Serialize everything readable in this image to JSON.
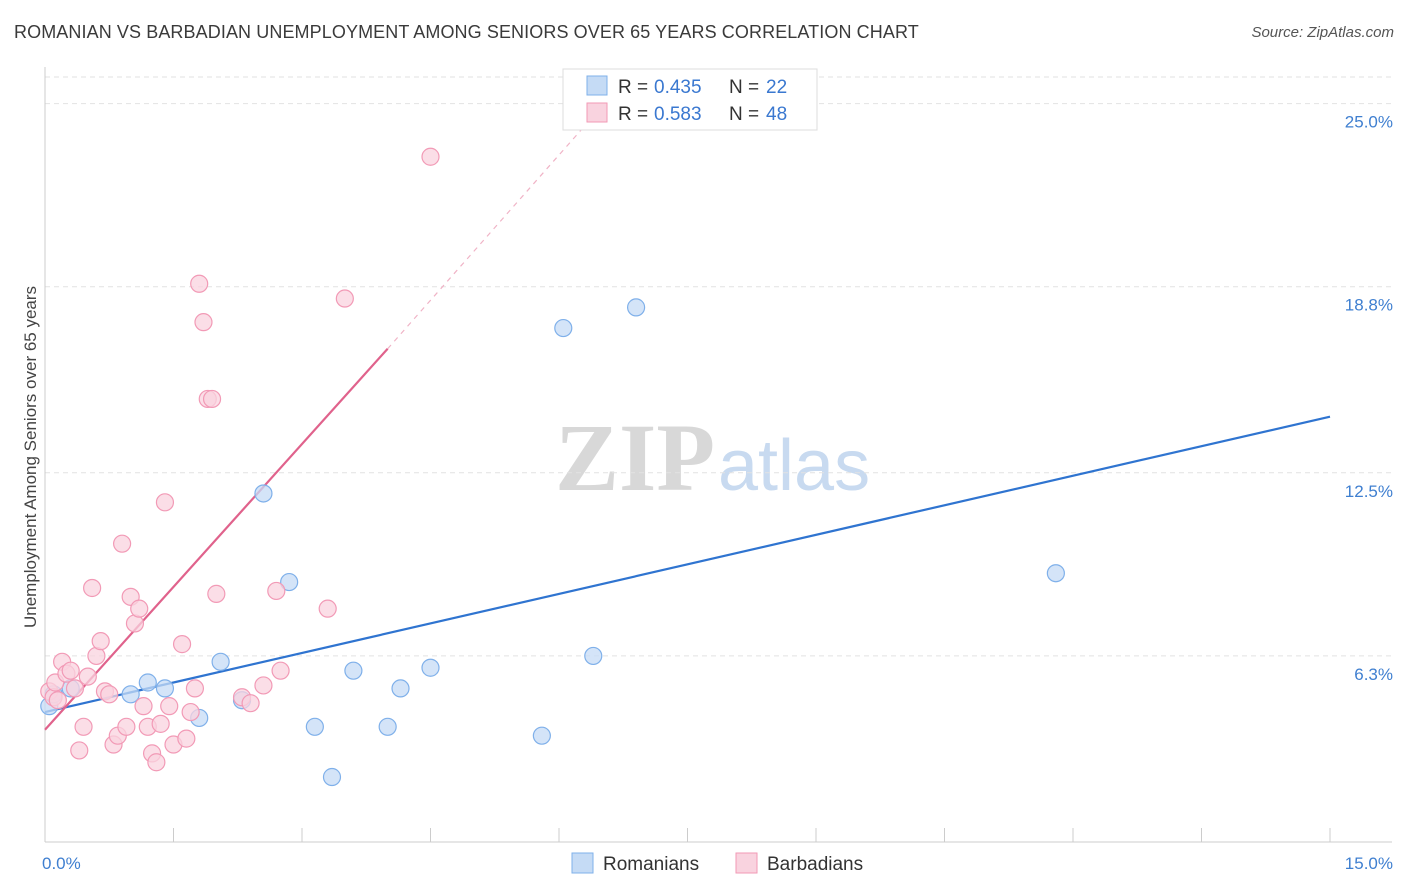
{
  "title": "ROMANIAN VS BARBADIAN UNEMPLOYMENT AMONG SENIORS OVER 65 YEARS CORRELATION CHART",
  "source": "Source: ZipAtlas.com",
  "watermark": {
    "zip": "ZIP",
    "atlas": "atlas"
  },
  "chart_data": {
    "type": "scatter",
    "xlabel": "",
    "ylabel": "Unemployment Among Seniors over 65 years",
    "xlim": [
      0,
      15
    ],
    "ylim": [
      0,
      25.9
    ],
    "x_tick_labels": [
      {
        "value": 0,
        "label": "0.0%"
      },
      {
        "value": 15,
        "label": "15.0%"
      }
    ],
    "y_tick_labels": [
      {
        "value": 6.3,
        "label": "6.3%"
      },
      {
        "value": 12.5,
        "label": "12.5%"
      },
      {
        "value": 18.8,
        "label": "18.8%"
      },
      {
        "value": 25.0,
        "label": "25.0%"
      }
    ],
    "x_minor_ticks": [
      1.5,
      3.0,
      4.5,
      6.0,
      7.5,
      9.0,
      10.5,
      12.0,
      13.5,
      15.0
    ],
    "stats_legend": [
      {
        "r_label": "R = ",
        "r_value": "0.435",
        "n_label": "N = ",
        "n_value": "22",
        "color": "#a8c8f0"
      },
      {
        "r_label": "R = ",
        "r_value": "0.583",
        "n_label": "N = ",
        "n_value": "48",
        "color": "#f5b3c8"
      }
    ],
    "series": [
      {
        "name": "Romanians",
        "color": "#7fb0ea",
        "fill": "#c5dbf5",
        "line_color": "#2f74d0",
        "trend": {
          "x0": 0.0,
          "y0": 4.4,
          "x1": 15.0,
          "y1": 14.4
        },
        "points": [
          [
            0.05,
            4.6
          ],
          [
            0.1,
            5.0
          ],
          [
            0.3,
            5.2
          ],
          [
            1.0,
            5.0
          ],
          [
            1.2,
            5.4
          ],
          [
            1.4,
            5.2
          ],
          [
            1.8,
            4.2
          ],
          [
            2.05,
            6.1
          ],
          [
            2.3,
            4.8
          ],
          [
            2.55,
            11.8
          ],
          [
            2.85,
            8.8
          ],
          [
            3.35,
            2.2
          ],
          [
            3.15,
            3.9
          ],
          [
            3.6,
            5.8
          ],
          [
            4.0,
            3.9
          ],
          [
            4.15,
            5.2
          ],
          [
            4.5,
            5.9
          ],
          [
            5.8,
            3.6
          ],
          [
            6.05,
            17.4
          ],
          [
            6.4,
            6.3
          ],
          [
            6.9,
            18.1
          ],
          [
            11.8,
            9.1
          ]
        ]
      },
      {
        "name": "Barbadians",
        "color": "#f29ab6",
        "fill": "#f9d3df",
        "line_color": "#e0628c",
        "trend": {
          "x0": 0.0,
          "y0": 3.8,
          "x1": 4.0,
          "y1": 16.7
        },
        "trend_ext": {
          "x0": 4.0,
          "y0": 16.7,
          "x1": 6.5,
          "y1": 24.9
        },
        "points": [
          [
            0.05,
            5.1
          ],
          [
            0.1,
            4.9
          ],
          [
            0.12,
            5.4
          ],
          [
            0.2,
            6.1
          ],
          [
            0.25,
            5.7
          ],
          [
            0.3,
            5.8
          ],
          [
            0.35,
            5.2
          ],
          [
            0.45,
            3.9
          ],
          [
            0.4,
            3.1
          ],
          [
            0.55,
            8.6
          ],
          [
            0.6,
            6.3
          ],
          [
            0.65,
            6.8
          ],
          [
            0.7,
            5.1
          ],
          [
            0.8,
            3.3
          ],
          [
            0.85,
            3.6
          ],
          [
            0.9,
            10.1
          ],
          [
            0.95,
            3.9
          ],
          [
            1.0,
            8.3
          ],
          [
            1.05,
            7.4
          ],
          [
            1.1,
            7.9
          ],
          [
            1.15,
            4.6
          ],
          [
            1.2,
            3.9
          ],
          [
            1.25,
            3.0
          ],
          [
            1.3,
            2.7
          ],
          [
            1.4,
            11.5
          ],
          [
            1.45,
            4.6
          ],
          [
            1.5,
            3.3
          ],
          [
            1.6,
            6.7
          ],
          [
            1.65,
            3.5
          ],
          [
            1.7,
            4.4
          ],
          [
            1.75,
            5.2
          ],
          [
            1.8,
            18.9
          ],
          [
            1.85,
            17.6
          ],
          [
            1.9,
            15.0
          ],
          [
            1.95,
            15.0
          ],
          [
            2.0,
            8.4
          ],
          [
            2.3,
            4.9
          ],
          [
            2.4,
            4.7
          ],
          [
            2.7,
            8.5
          ],
          [
            2.75,
            5.8
          ],
          [
            3.3,
            7.9
          ],
          [
            3.5,
            18.4
          ],
          [
            4.5,
            23.2
          ],
          [
            0.15,
            4.8
          ],
          [
            0.5,
            5.6
          ],
          [
            0.75,
            5.0
          ],
          [
            2.55,
            5.3
          ],
          [
            1.35,
            4.0
          ]
        ]
      }
    ]
  }
}
